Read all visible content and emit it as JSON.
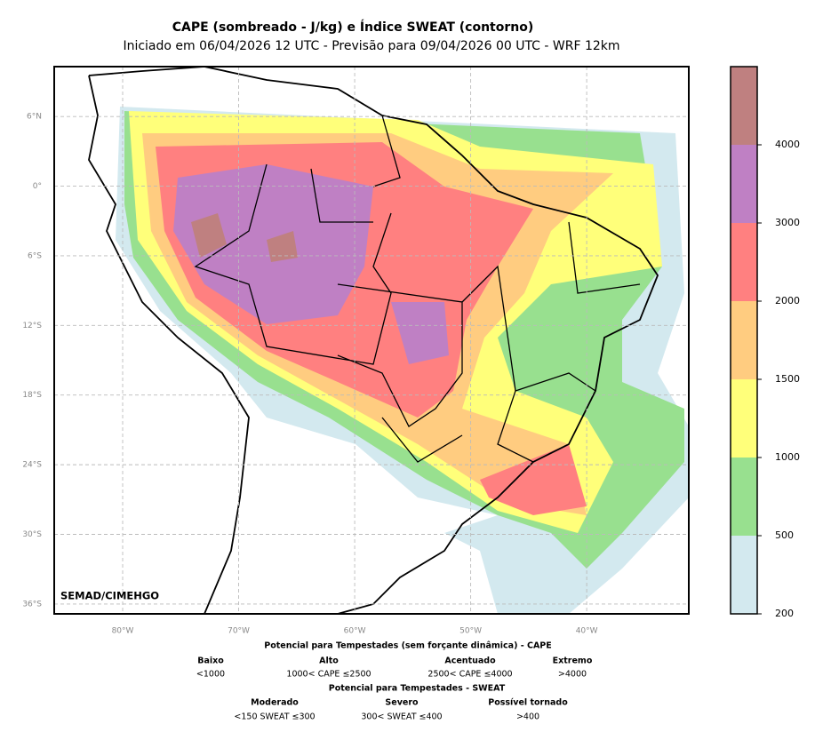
{
  "header": {
    "title": "CAPE (sombreado - J/kg) e Índice SWEAT (contorno)",
    "subtitle": "Iniciado em 06/04/2026 12 UTC - Previsão para 09/04/2026 00 UTC - WRF 12km"
  },
  "map": {
    "lat_lim": [
      -36.85,
      10.3
    ],
    "lon_lim": [
      -85.9,
      -31.2
    ],
    "lat_ticks": [
      {
        "value": 6,
        "label": "6°N"
      },
      {
        "value": 0,
        "label": "0°"
      },
      {
        "value": -6,
        "label": "6°S"
      },
      {
        "value": -12,
        "label": "12°S"
      },
      {
        "value": -18,
        "label": "18°S"
      },
      {
        "value": -24,
        "label": "24°S"
      },
      {
        "value": -30,
        "label": "30°S"
      },
      {
        "value": -36,
        "label": "36°S"
      }
    ],
    "lon_ticks": [
      {
        "value": -80,
        "label": "80°W"
      },
      {
        "value": -70,
        "label": "70°W"
      },
      {
        "value": -60,
        "label": "60°W"
      },
      {
        "value": -50,
        "label": "50°W"
      },
      {
        "value": -40,
        "label": "40°W"
      }
    ],
    "credit": "SEMAD/CIMEHGO"
  },
  "colorbar": {
    "ticks": [
      200,
      500,
      1000,
      1500,
      2000,
      3000,
      4000
    ],
    "colors": [
      "#d3e9ef",
      "#98e08f",
      "#ffff7a",
      "#ffcc80",
      "#ff8080",
      "#bf80c4",
      "#bf8080"
    ]
  },
  "legend": {
    "cape_title": "Potencial para Tempestades (sem forçante dinâmica) - CAPE",
    "cape": [
      {
        "level": "Baixo",
        "range": "<1000"
      },
      {
        "level": "Alto",
        "range": "1000< CAPE ≤2500"
      },
      {
        "level": "Acentuado",
        "range": "2500< CAPE ≤4000"
      },
      {
        "level": "Extremo",
        "range": ">4000"
      }
    ],
    "sweat_title": "Potencial para Tempestades - SWEAT",
    "sweat": [
      {
        "level": "Moderado",
        "range": "<150 SWEAT ≤300"
      },
      {
        "level": "Severo",
        "range": "300< SWEAT ≤400"
      },
      {
        "level": "Possível tornado",
        "range": ">400"
      }
    ]
  }
}
